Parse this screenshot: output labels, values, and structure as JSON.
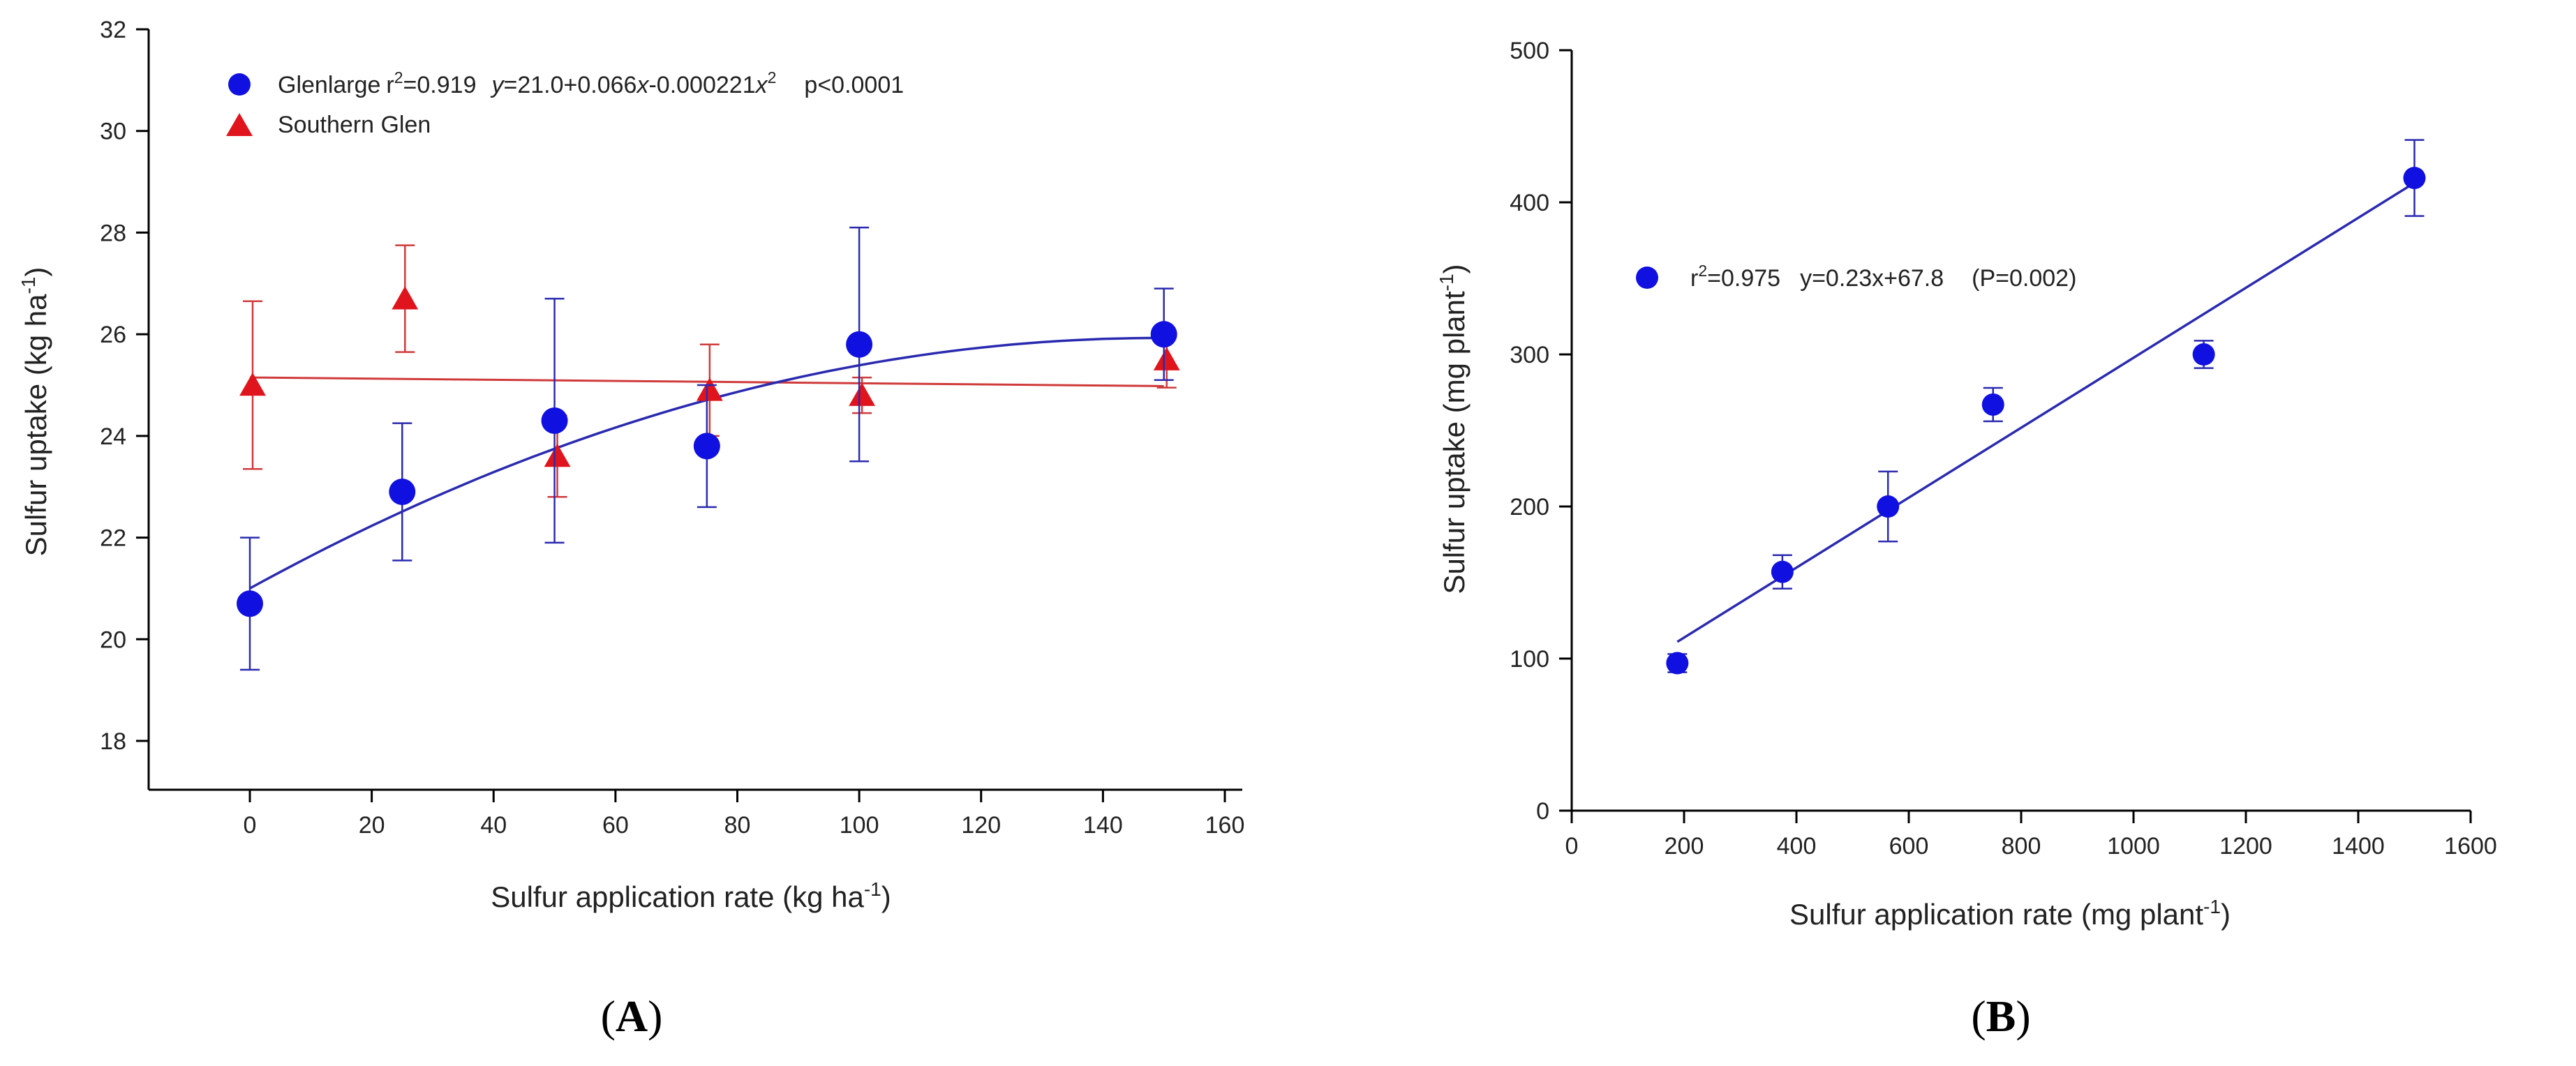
{
  "colors": {
    "blue": "#1010e0",
    "blue_line": "#2a2ab0",
    "red": "#e0141c",
    "red_line": "#d03a3a",
    "axis": "#000000"
  },
  "chart_data": [
    {
      "type": "scatter",
      "panel_label": "A",
      "ylabel_main": "Sulfur uptake (kg ha",
      "ylabel_sup": "-1",
      "ylabel_end": ")",
      "xlabel_main": "Sulfur application rate (kg ha",
      "xlabel_sup": "-1",
      "xlabel_end": ")",
      "xlim": [
        -20,
        160
      ],
      "ylim": [
        17,
        32
      ],
      "xticks": [
        0,
        20,
        40,
        60,
        80,
        100,
        120,
        140,
        160
      ],
      "yticks": [
        18,
        20,
        22,
        24,
        26,
        28,
        30,
        32
      ],
      "series": [
        {
          "name": "Glenlarge",
          "legend_r2_prefix": "r",
          "legend_r2_sup": "2",
          "legend_r2_value": "=0.919",
          "legend_eq_1": "y",
          "legend_eq_2": "=21.0+0.066",
          "legend_eq_3": "x",
          "legend_eq_4": "-0.000221",
          "legend_eq_5": "x",
          "legend_eq_sup": "2",
          "legend_p": "p<0.0001",
          "marker": "circle",
          "color": "#1010e0",
          "x": [
            0,
            25,
            50,
            75,
            100,
            150
          ],
          "y": [
            20.7,
            22.9,
            24.3,
            23.8,
            25.8,
            26.0
          ],
          "err": [
            1.3,
            1.35,
            2.4,
            1.2,
            2.3,
            0.9
          ],
          "fit": {
            "a": 21.0,
            "b": 0.066,
            "c": -0.000221
          }
        },
        {
          "name": "Southern Glen",
          "marker": "triangle",
          "color": "#e0141c",
          "x": [
            0,
            25,
            50,
            75,
            100,
            150
          ],
          "y": [
            25.0,
            26.7,
            23.6,
            24.9,
            24.8,
            25.5
          ],
          "err": [
            1.65,
            1.05,
            0.8,
            0.9,
            0.35,
            0.55
          ],
          "fit": {
            "y0": 25.15,
            "y1": 24.98
          }
        }
      ]
    },
    {
      "type": "scatter",
      "panel_label": "B",
      "ylabel_main": "Sulfur uptake (mg plant",
      "ylabel_sup": "-1",
      "ylabel_end": ")",
      "xlabel_main": "Sulfur application rate (mg plant",
      "xlabel_sup": "-1",
      "xlabel_end": ")",
      "xlim": [
        0,
        1600
      ],
      "ylim": [
        0,
        500
      ],
      "xticks": [
        0,
        200,
        400,
        600,
        800,
        1000,
        1200,
        1400,
        1600
      ],
      "yticks": [
        0,
        100,
        200,
        300,
        400,
        500
      ],
      "series": [
        {
          "name": "",
          "legend_r2_prefix": "r",
          "legend_r2_sup": "2",
          "legend_r2_value": "=0.975",
          "legend_eq": "y=0.23x+67.8",
          "legend_p": "(P=0.002)",
          "marker": "circle",
          "color": "#1010e0",
          "x": [
            188,
            375,
            563,
            750,
            1125,
            1500
          ],
          "y": [
            97,
            157,
            200,
            267,
            300,
            416
          ],
          "err": [
            6,
            11,
            23,
            11,
            9,
            25
          ],
          "fit": {
            "slope": 0.23,
            "intercept": 67.8,
            "x0": 188,
            "x1": 1500
          }
        }
      ]
    }
  ]
}
